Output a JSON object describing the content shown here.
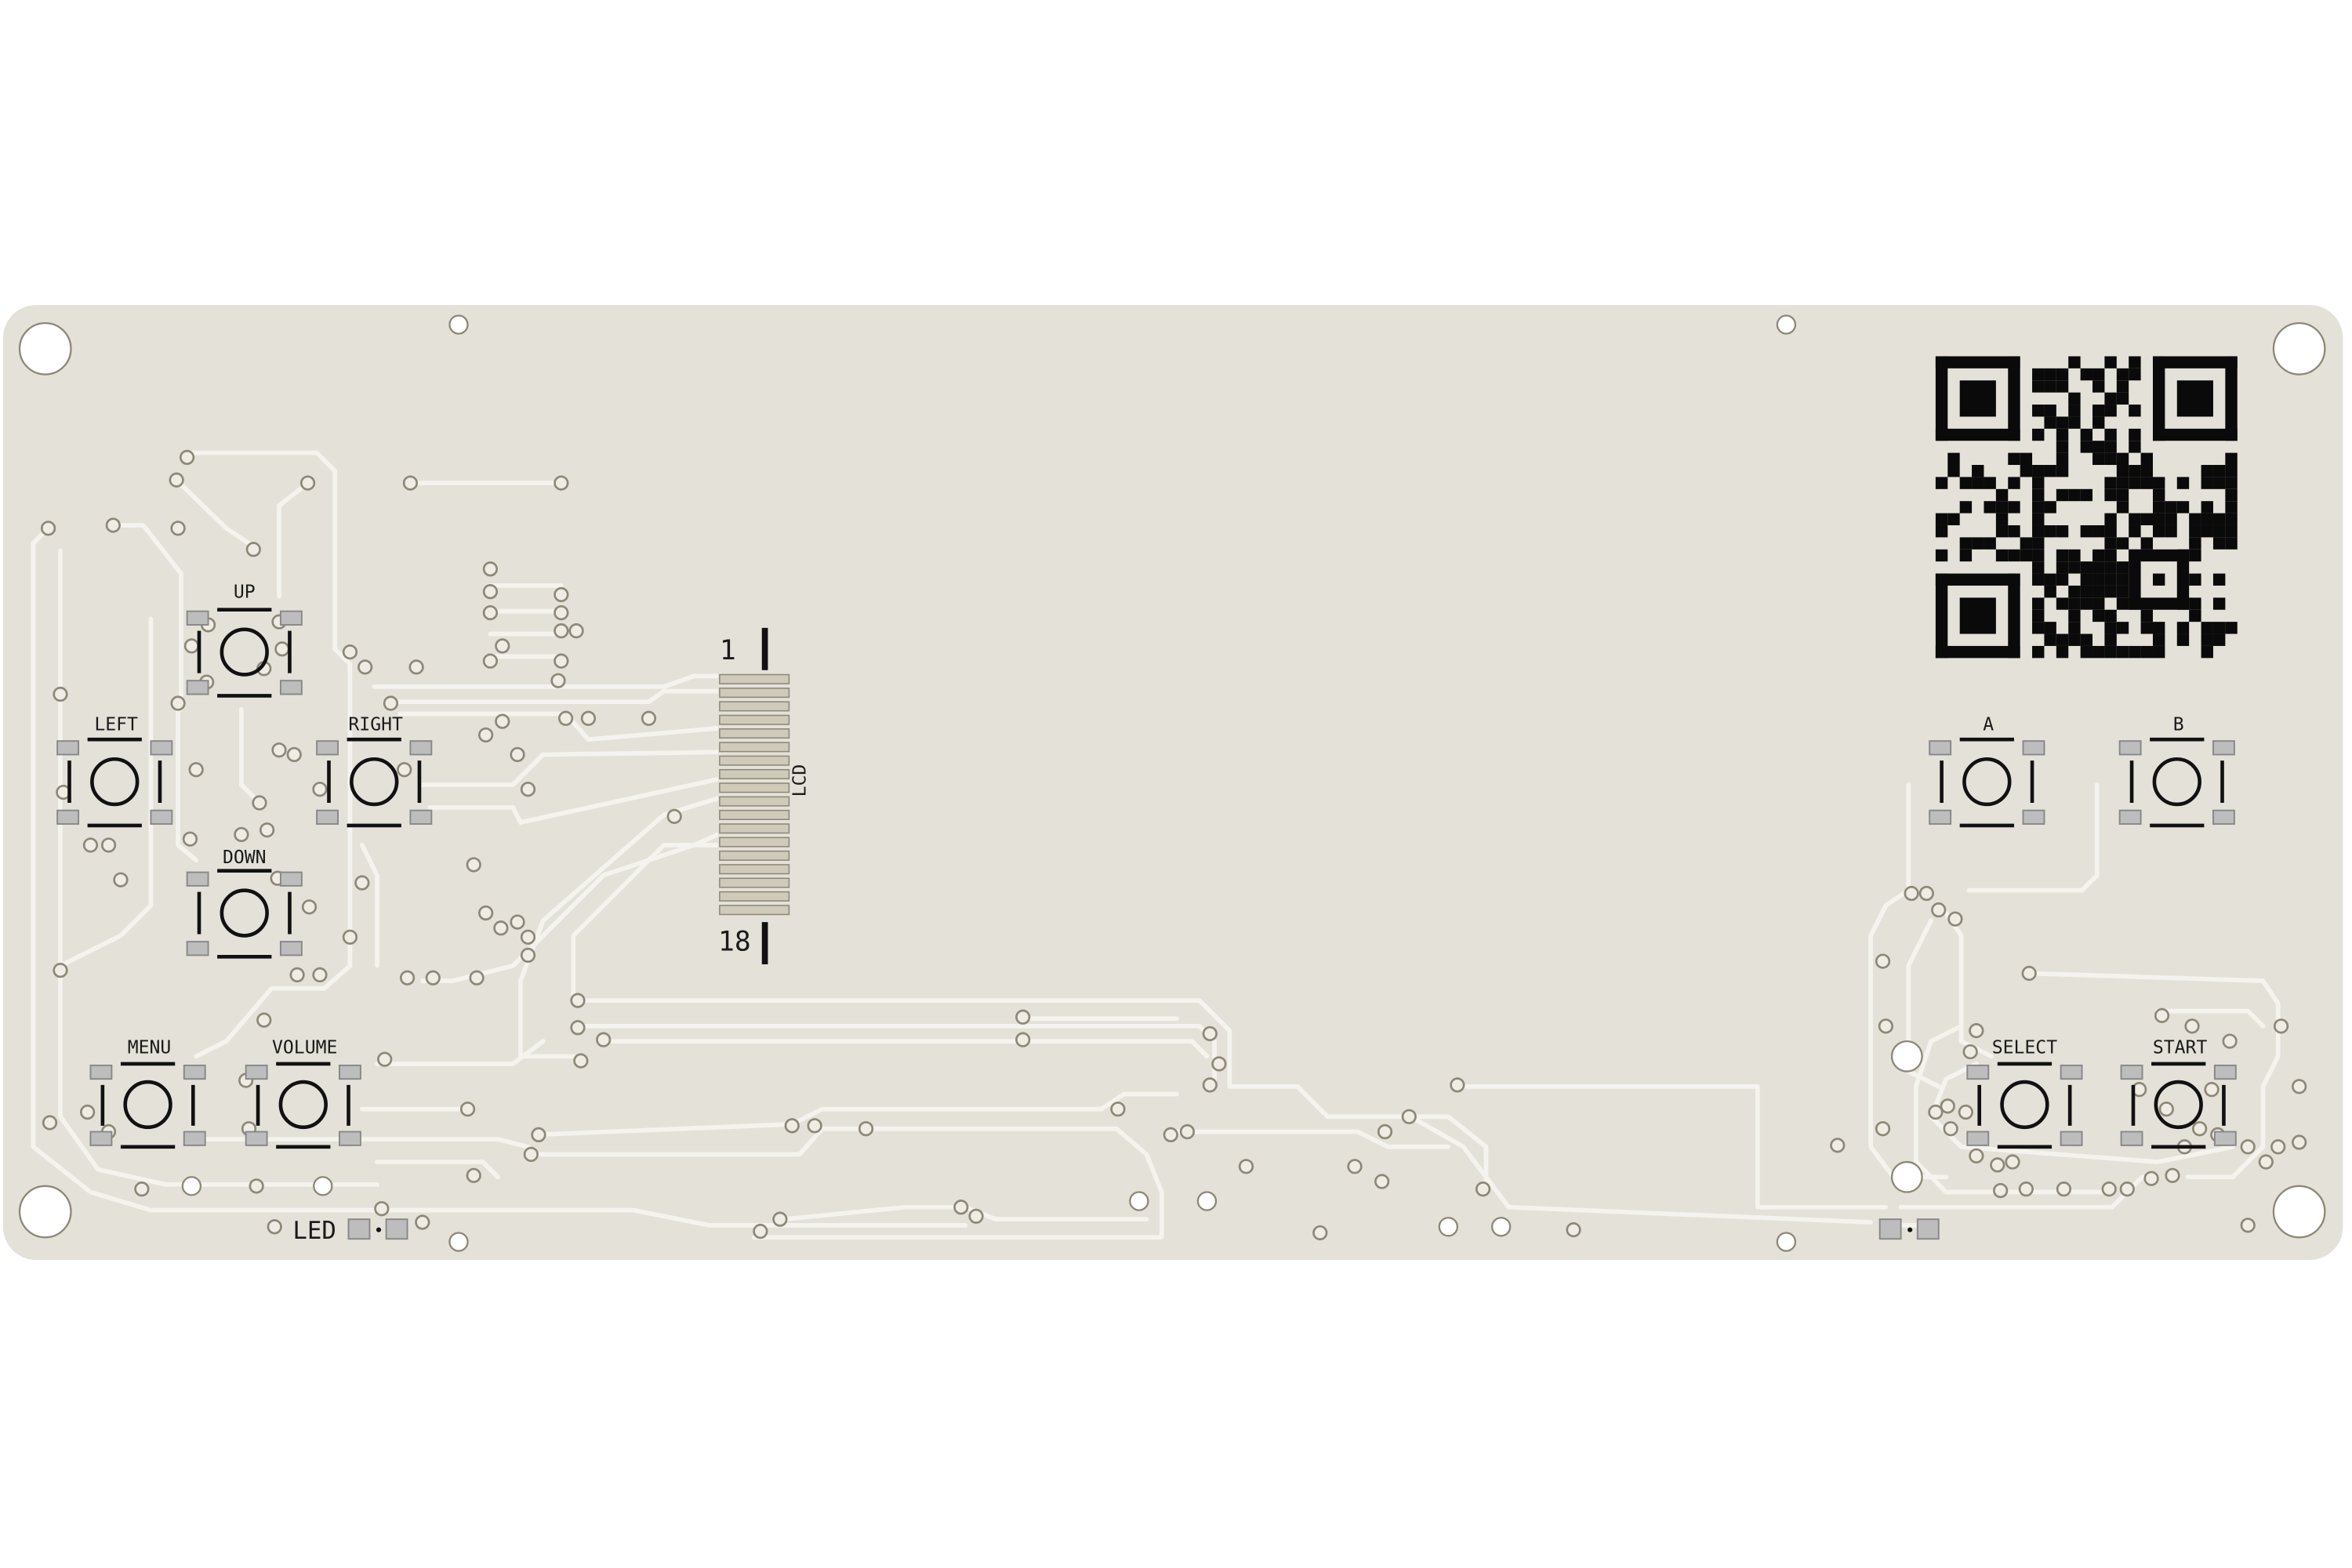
{
  "board": {
    "colors": {
      "substrate": "#e4e1d8",
      "trace": "#f4f3ee",
      "pad": "#bdbdbd",
      "silkscreen": "#111111",
      "via_ring": "#8d8877"
    },
    "buttons": {
      "up": "UP",
      "left": "LEFT",
      "right": "RIGHT",
      "down": "DOWN",
      "menu": "MENU",
      "volume": "VOLUME",
      "a": "A",
      "b": "B",
      "select": "SELECT",
      "start": "START"
    },
    "lcd": {
      "label": "LCD",
      "pin_first": "1",
      "pin_last": "18"
    },
    "led": {
      "label": "LED"
    },
    "qr": {
      "icon": "qr-code-icon"
    }
  }
}
